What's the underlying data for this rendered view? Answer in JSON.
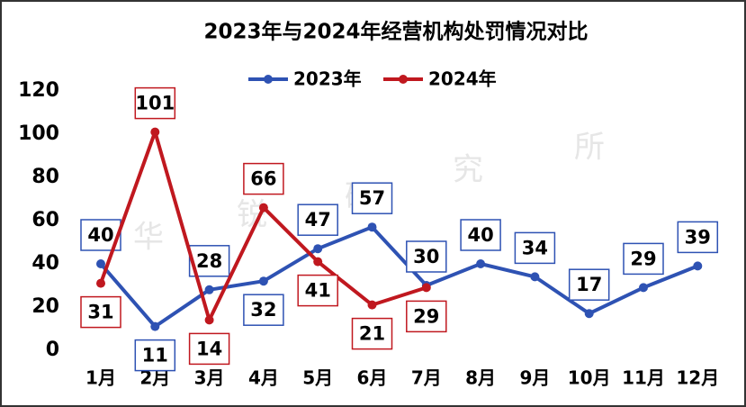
{
  "chart_data": {
    "type": "line",
    "title": "2023年与2024年经营机构处罚情况对比",
    "watermark": [
      "华",
      "锐",
      "研",
      "究",
      "所"
    ],
    "categories": [
      "1月",
      "2月",
      "3月",
      "4月",
      "5月",
      "6月",
      "7月",
      "8月",
      "9月",
      "10月",
      "11月",
      "12月"
    ],
    "series": [
      {
        "name": "2023年",
        "color": "#2e52b3",
        "values": [
          40,
          11,
          28,
          32,
          47,
          57,
          30,
          40,
          34,
          17,
          29,
          39
        ]
      },
      {
        "name": "2024年",
        "color": "#c0181f",
        "values": [
          31,
          101,
          14,
          66,
          41,
          21,
          29,
          null,
          null,
          null,
          null,
          null
        ]
      }
    ],
    "ylim": [
      0,
      120
    ],
    "yticks": [
      0,
      20,
      40,
      60,
      80,
      100,
      120
    ],
    "grid": false,
    "legend": "top"
  }
}
